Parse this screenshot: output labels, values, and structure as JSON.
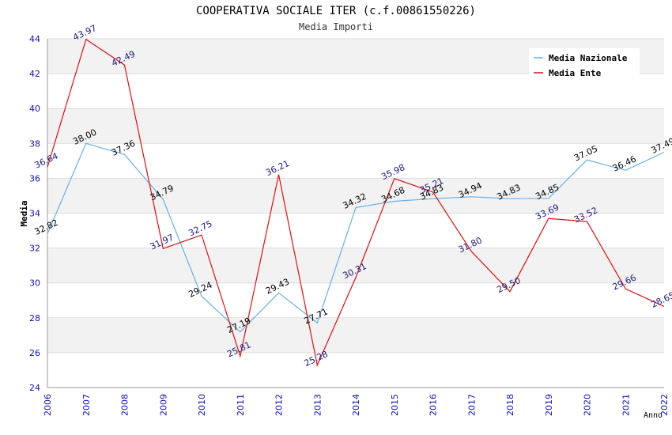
{
  "chart_data": {
    "type": "line",
    "title": "COOPERATIVA SOCIALE ITER (c.f.00861550226)",
    "subtitle": "Media Importi",
    "xlabel": "Anno",
    "ylabel": "Media",
    "ylim": [
      24,
      44
    ],
    "y_ticks": [
      24,
      26,
      28,
      30,
      32,
      34,
      36,
      38,
      40,
      42,
      44
    ],
    "x": [
      2006,
      2007,
      2008,
      2009,
      2010,
      2011,
      2012,
      2013,
      2014,
      2015,
      2016,
      2017,
      2018,
      2019,
      2020,
      2021,
      2022
    ],
    "x_labels": [
      "2006",
      "2007",
      "2008",
      "2009",
      "2010",
      "2011",
      "2012",
      "2013",
      "2014",
      "2015",
      "2016",
      "2017",
      "2018",
      "2019",
      "2020",
      "2021",
      "2022"
    ],
    "grid": true,
    "legend_position": "top-right",
    "series": [
      {
        "name": "Media Nazionale",
        "color": "#6aaee6",
        "label_color": "#000000",
        "values": [
          32.82,
          38.0,
          37.36,
          34.79,
          29.24,
          27.19,
          29.43,
          27.71,
          34.32,
          34.68,
          34.83,
          34.94,
          34.83,
          34.85,
          37.05,
          36.46,
          37.49
        ],
        "labels": [
          "32.82",
          "38.00",
          "37.36",
          "34.79",
          "29.24",
          "27.19",
          "29.43",
          "27.71",
          "34.32",
          "34.68",
          "34.83",
          "34.94",
          "34.83",
          "34.85",
          "37.05",
          "36.46",
          "37.49"
        ]
      },
      {
        "name": "Media Ente",
        "color": "#e01010",
        "label_color": "#1a1a80",
        "values": [
          36.64,
          43.97,
          42.49,
          31.97,
          32.75,
          25.81,
          36.21,
          25.28,
          30.31,
          35.98,
          35.21,
          31.8,
          29.5,
          33.69,
          33.52,
          29.66,
          28.65
        ],
        "labels": [
          "36.64",
          "43.97",
          "42.49",
          "31.97",
          "32.75",
          "25.81",
          "36.21",
          "25.28",
          "30.31",
          "35.98",
          "35.21",
          "31.80",
          "29.50",
          "33.69",
          "33.52",
          "29.66",
          "28.65"
        ]
      }
    ]
  }
}
